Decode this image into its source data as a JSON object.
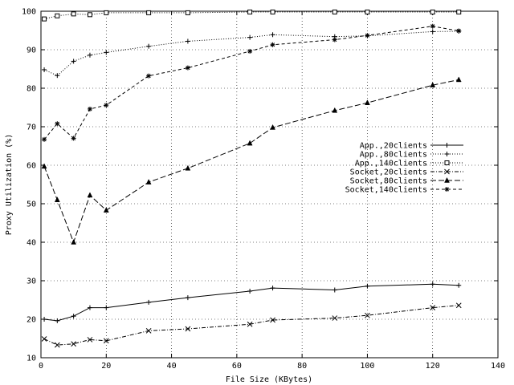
{
  "chart_data": {
    "type": "line",
    "xlabel": "File Size (KBytes)",
    "ylabel": "Proxy Utilization (%)",
    "xlim": [
      0,
      140
    ],
    "ylim": [
      10,
      100
    ],
    "xticks": [
      0,
      20,
      40,
      60,
      80,
      100,
      120,
      140
    ],
    "yticks": [
      10,
      20,
      30,
      40,
      50,
      60,
      70,
      80,
      90,
      100
    ],
    "grid": true,
    "legend_position": "right",
    "series": [
      {
        "name": "App.,20clients",
        "marker": "plus",
        "dash": "solid",
        "x": [
          1,
          5,
          10,
          15,
          20,
          33,
          45,
          64,
          71,
          90,
          100,
          120,
          128
        ],
        "y": [
          20,
          19.6,
          20.8,
          23,
          23,
          24.4,
          25.6,
          27.3,
          28.1,
          27.6,
          28.6,
          29.1,
          28.8
        ]
      },
      {
        "name": "App.,80clients",
        "marker": "plus",
        "dash": "dotted",
        "x": [
          1,
          5,
          10,
          15,
          20,
          33,
          45,
          64,
          71,
          90,
          100,
          120,
          128
        ],
        "y": [
          84.8,
          83.3,
          87,
          88.6,
          89.3,
          90.9,
          92.2,
          93.2,
          93.9,
          93.4,
          93.6,
          94.7,
          94.8
        ]
      },
      {
        "name": "App.,140clients",
        "marker": "square",
        "dash": "dotted",
        "x": [
          1,
          5,
          10,
          15,
          20,
          33,
          45,
          64,
          71,
          90,
          100,
          120,
          128
        ],
        "y": [
          98,
          98.8,
          99.3,
          99.1,
          99.6,
          99.6,
          99.6,
          99.8,
          99.8,
          99.8,
          99.8,
          99.8,
          99.8
        ]
      },
      {
        "name": "Socket,20clients",
        "marker": "cross",
        "dash": "dash-dot",
        "x": [
          1,
          5,
          10,
          15,
          20,
          33,
          45,
          64,
          71,
          90,
          100,
          120,
          128
        ],
        "y": [
          14.9,
          13.3,
          13.6,
          14.7,
          14.4,
          17,
          17.5,
          18.7,
          19.8,
          20.3,
          21,
          23,
          23.6
        ]
      },
      {
        "name": "Socket,80clients",
        "marker": "triangle",
        "dash": "long-dash",
        "x": [
          1,
          5,
          10,
          15,
          20,
          33,
          45,
          64,
          71,
          90,
          100,
          120,
          128
        ],
        "y": [
          59.7,
          51,
          40,
          52.2,
          48.3,
          55.6,
          59.2,
          65.7,
          69.8,
          74.2,
          76.2,
          80.8,
          82.2
        ]
      },
      {
        "name": "Socket,140clients",
        "marker": "star",
        "dash": "short-dash",
        "x": [
          1,
          5,
          10,
          15,
          20,
          33,
          45,
          64,
          71,
          90,
          100,
          120,
          128
        ],
        "y": [
          66.7,
          70.8,
          67,
          74.6,
          75.6,
          83.2,
          85.3,
          89.6,
          91.3,
          92.6,
          93.7,
          96.1,
          94.9
        ]
      }
    ]
  }
}
